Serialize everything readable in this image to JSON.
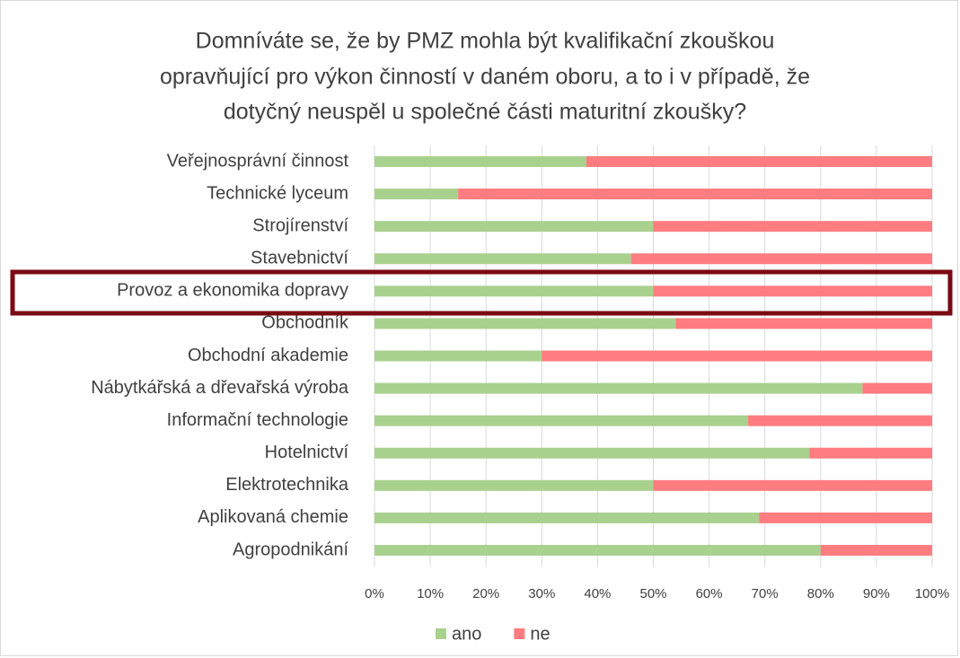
{
  "chart_data": {
    "type": "stacked_barh",
    "title": [
      "Domníváte se, že by PMZ mohla být kvalifikační zkouškou",
      "opravňující pro výkon činností v daném oboru, a to i v případě, že",
      "dotyčný neuspěl u společné části maturitní zkoušky?"
    ],
    "categories": [
      "Veřejnosprávní činnost",
      "Technické lyceum",
      "Strojírenství",
      "Stavebnictví",
      "Provoz a ekonomika dopravy",
      "Obchodník",
      "Obchodní akademie",
      "Nábytkářská a dřevařská výroba",
      "Informační technologie",
      "Hotelnictví",
      "Elektrotechnika",
      "Aplikovaná chemie",
      "Agropodnikání"
    ],
    "series": [
      {
        "name": "ano",
        "color": "#a9d18e",
        "values": [
          38,
          15,
          50,
          46,
          50,
          54,
          30,
          87.5,
          67,
          78,
          50,
          69,
          80
        ]
      },
      {
        "name": "ne",
        "color": "#ff7c80",
        "values": [
          62,
          85,
          50,
          54,
          50,
          46,
          70,
          12.5,
          33,
          22,
          50,
          31,
          20
        ]
      }
    ],
    "xlim": [
      0,
      100
    ],
    "xticks": [
      {
        "value": 0,
        "label": "0%"
      },
      {
        "value": 10,
        "label": "10%"
      },
      {
        "value": 20,
        "label": "20%"
      },
      {
        "value": 30,
        "label": "30%"
      },
      {
        "value": 40,
        "label": "40%"
      },
      {
        "value": 50,
        "label": "50%"
      },
      {
        "value": 60,
        "label": "60%"
      },
      {
        "value": 70,
        "label": "70%"
      },
      {
        "value": 80,
        "label": "80%"
      },
      {
        "value": 90,
        "label": "90%"
      },
      {
        "value": 100,
        "label": "100%"
      }
    ],
    "grid": true,
    "legend": "bottom"
  }
}
